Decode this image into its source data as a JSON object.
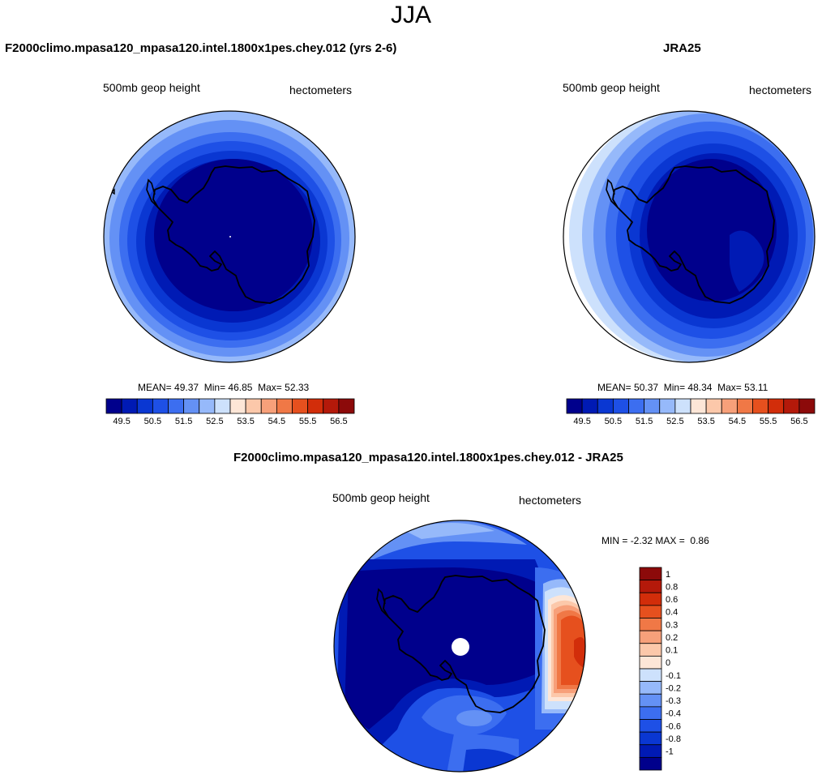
{
  "main_title": "JJA",
  "chart_data": [
    {
      "type": "heatmap",
      "title": "F2000climo.mpasa120_mpasa120.intel.1800x1pes.chey.012 (yrs 2-6)",
      "left_label": "500mb geop height",
      "right_label": "hectometers",
      "stats": {
        "mean_label": "MEAN=",
        "mean": "49.37",
        "min_label": "Min=",
        "min": "46.85",
        "max_label": "Max=",
        "max": "52.33"
      },
      "colorbar_ticks": [
        "49.5",
        "50.5",
        "51.5",
        "52.5",
        "53.5",
        "54.5",
        "55.5",
        "56.5"
      ],
      "contour_levels": [
        49.5,
        50,
        50.5,
        51,
        51.5,
        52,
        52.5,
        53,
        53.5,
        54,
        54.5,
        55,
        55.5,
        56,
        56.5
      ]
    },
    {
      "type": "heatmap",
      "title": "JRA25",
      "left_label": "500mb geop height",
      "right_label": "hectometers",
      "stats": {
        "mean_label": "MEAN=",
        "mean": "50.37",
        "min_label": "Min=",
        "min": "48.34",
        "max_label": "Max=",
        "max": "53.11"
      },
      "colorbar_ticks": [
        "49.5",
        "50.5",
        "51.5",
        "52.5",
        "53.5",
        "54.5",
        "55.5",
        "56.5"
      ],
      "contour_levels": [
        49.5,
        50,
        50.5,
        51,
        51.5,
        52,
        52.5,
        53,
        53.5,
        54,
        54.5,
        55,
        55.5,
        56,
        56.5
      ]
    },
    {
      "type": "heatmap",
      "title": "F2000climo.mpasa120_mpasa120.intel.1800x1pes.chey.012 - JRA25",
      "left_label": "500mb geop height",
      "right_label": "hectometers",
      "stats": {
        "min_label": "MIN =",
        "min": "-2.32",
        "max_label": "MAX =",
        "max": "0.86"
      },
      "colorbar_ticks": [
        "1",
        "0.8",
        "0.6",
        "0.4",
        "0.3",
        "0.2",
        "0.1",
        "0",
        "-0.1",
        "-0.2",
        "-0.3",
        "-0.4",
        "-0.6",
        "-0.8",
        "-1"
      ],
      "contour_levels": [
        1,
        0.8,
        0.6,
        0.4,
        0.3,
        0.2,
        0.1,
        0,
        -0.1,
        -0.2,
        -0.3,
        -0.4,
        -0.6,
        -0.8,
        -1
      ]
    }
  ],
  "colors": {
    "palette16": [
      "#00008c",
      "#001ab4",
      "#0a37d2",
      "#1e50e6",
      "#3c6ef0",
      "#6491f5",
      "#96b9fa",
      "#cde1fc",
      "#fde6d7",
      "#fcc8aa",
      "#f7a07a",
      "#f07846",
      "#e6501e",
      "#d22d0a",
      "#b4190a",
      "#8c0a0a"
    ],
    "land_outline": "#000000"
  }
}
